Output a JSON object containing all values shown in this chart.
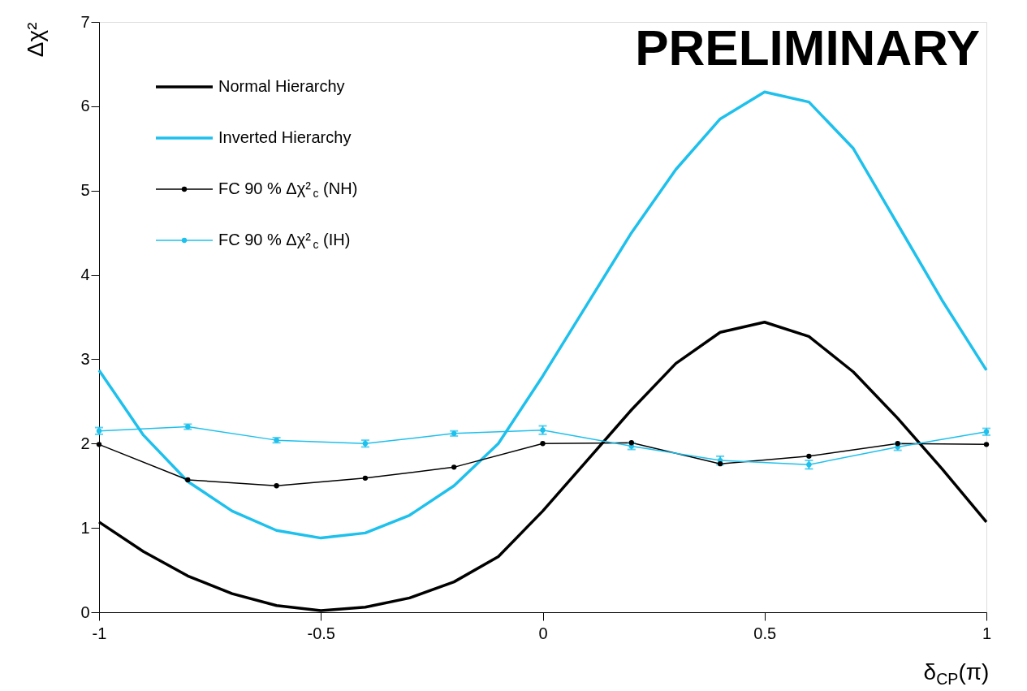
{
  "chart_data": {
    "type": "line",
    "xlabel": "δ$_{CP}$(π)",
    "ylabel": "Δχ²",
    "annotations": [
      "PRELIMINARY"
    ],
    "xlim": [
      -1,
      1
    ],
    "xticks": [
      -1,
      -0.5,
      0,
      0.5,
      1
    ],
    "ylim": [
      0,
      7
    ],
    "yticks": [
      0,
      1,
      2,
      3,
      4,
      5,
      6,
      7
    ],
    "grid": false,
    "legend": "top left",
    "line_style": "solid",
    "series": [
      {
        "name": "Normal Hierarchy",
        "color": "#000000",
        "marker": "none",
        "x": [
          -1,
          -0.9,
          -0.8,
          -0.7,
          -0.6,
          -0.5,
          -0.4,
          -0.3,
          -0.2,
          -0.1,
          0,
          0.1,
          0.2,
          0.3,
          0.4,
          0.5,
          0.6,
          0.7,
          0.8,
          0.9,
          1
        ],
        "values": [
          1.07,
          0.72,
          0.43,
          0.22,
          0.08,
          0.02,
          0.06,
          0.17,
          0.36,
          0.66,
          1.2,
          1.8,
          2.4,
          2.95,
          3.32,
          3.44,
          3.27,
          2.85,
          2.3,
          1.7,
          1.07
        ]
      },
      {
        "name": "Inverted Hierarchy",
        "color": "#1ec0ec",
        "marker": "none",
        "x": [
          -1,
          -0.9,
          -0.8,
          -0.7,
          -0.6,
          -0.5,
          -0.4,
          -0.3,
          -0.2,
          -0.1,
          0,
          0.1,
          0.2,
          0.3,
          0.4,
          0.5,
          0.6,
          0.7,
          0.8,
          0.9,
          1
        ],
        "values": [
          2.87,
          2.1,
          1.55,
          1.2,
          0.97,
          0.88,
          0.94,
          1.15,
          1.5,
          2.0,
          2.8,
          3.65,
          4.5,
          5.25,
          5.85,
          6.17,
          6.05,
          5.5,
          4.6,
          3.7,
          2.87
        ]
      },
      {
        "name": "FC 90 %  Δχ²$_{c}$ (NH)",
        "color": "#000000",
        "marker": "circle",
        "x": [
          -1,
          -0.8,
          -0.6,
          -0.4,
          -0.2,
          0,
          0.2,
          0.4,
          0.6,
          0.8,
          1
        ],
        "values": [
          1.99,
          1.57,
          1.5,
          1.59,
          1.72,
          2.0,
          2.01,
          1.76,
          1.85,
          2.0,
          1.99
        ]
      },
      {
        "name": "FC 90 %  Δχ²$_{c}$ (IH)",
        "color": "#1ec0ec",
        "marker": "circle",
        "x": [
          -1,
          -0.8,
          -0.6,
          -0.4,
          -0.2,
          0,
          0.2,
          0.4,
          0.6,
          0.8,
          1
        ],
        "values": [
          2.15,
          2.2,
          2.04,
          2.0,
          2.12,
          2.16,
          1.97,
          1.8,
          1.75,
          1.96,
          2.14
        ],
        "errors": [
          0.04,
          0.03,
          0.03,
          0.04,
          0.03,
          0.05,
          0.04,
          0.05,
          0.05,
          0.04,
          0.04
        ]
      }
    ]
  }
}
